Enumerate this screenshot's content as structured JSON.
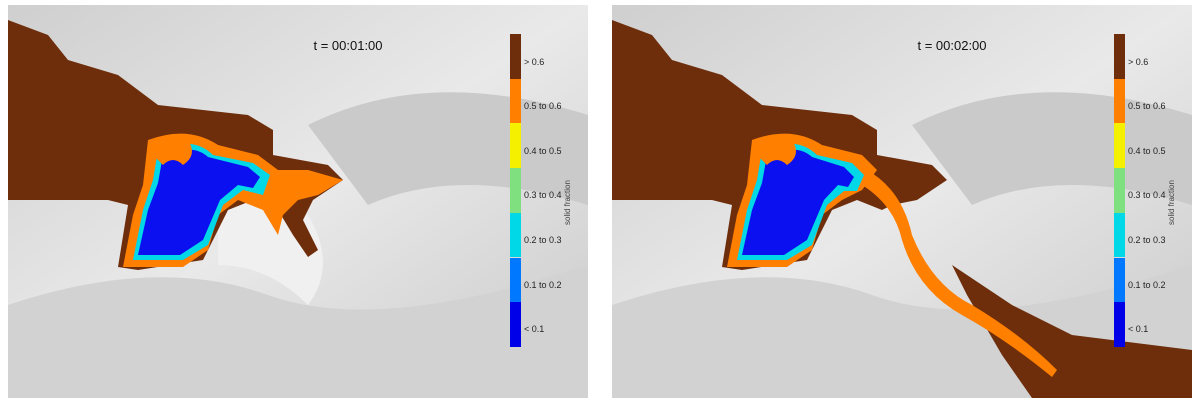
{
  "panels": [
    {
      "id": "panel-1",
      "time_label": "t = 00:01:00"
    },
    {
      "id": "panel-2",
      "time_label": "t = 00:02:00"
    }
  ],
  "colorbar": {
    "title": "solid fraction",
    "classes": [
      {
        "label": "> 0.6",
        "color": "#6e2e0c"
      },
      {
        "label": "0.5 to 0.6",
        "color": "#ff7f00"
      },
      {
        "label": "0.4 to 0.5",
        "color": "#f5f000"
      },
      {
        "label": "0.3 to 0.4",
        "color": "#7fe080"
      },
      {
        "label": "0.2 to 0.3",
        "color": "#00d8e8"
      },
      {
        "label": "0.1 to 0.2",
        "color": "#0078ff"
      },
      {
        "label": "< 0.1",
        "color": "#0000e8"
      }
    ]
  },
  "colors": {
    "terrain_light": "#e6e6e6",
    "terrain_shadow": "#bdbdbd",
    "deposit": "#6e2e0c",
    "flow_front": "#ff7f00",
    "lake": "#0a10f0"
  }
}
